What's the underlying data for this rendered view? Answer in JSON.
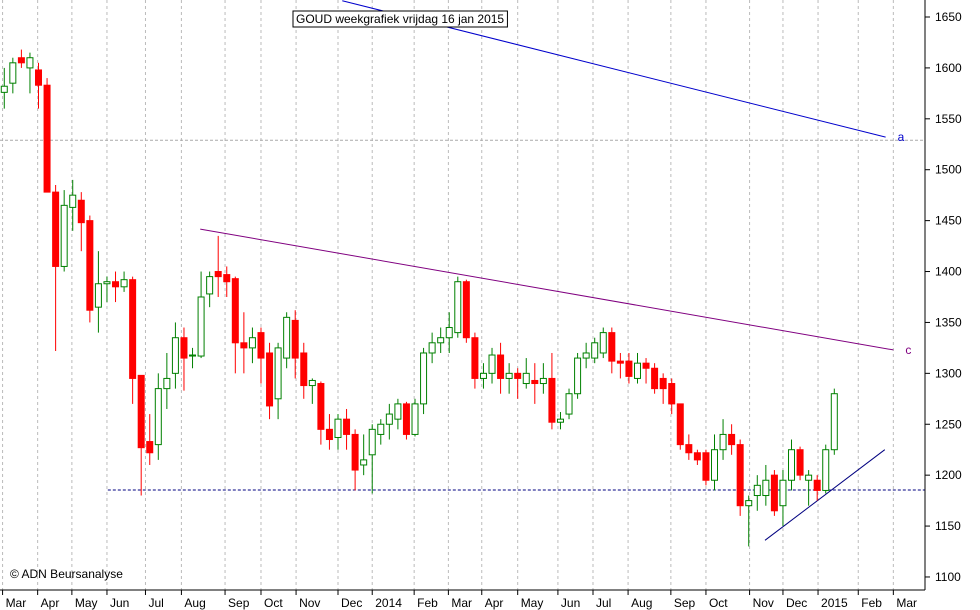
{
  "chart_data": {
    "type": "candlestick",
    "title": "GOUD weekgrafiek vrijdag 16 jan 2015",
    "credit": "© ADN Beursanalyse",
    "up_color": "#008000",
    "down_color": "#ff0000",
    "x": [
      0,
      1,
      2,
      3,
      4,
      5,
      6,
      7,
      8,
      9,
      10,
      11,
      12,
      13,
      14,
      15,
      16,
      17,
      18,
      19,
      20,
      21,
      22,
      23,
      24,
      25,
      26,
      27,
      28,
      29,
      30,
      31,
      32,
      33,
      34,
      35,
      36,
      37,
      38,
      39,
      40,
      41,
      42,
      43,
      44,
      45,
      46,
      47,
      48,
      49,
      50,
      51,
      52,
      53,
      54,
      55,
      56,
      57,
      58,
      59,
      60,
      61,
      62,
      63,
      64,
      65,
      66,
      67,
      68,
      69,
      70,
      71,
      72,
      73,
      74,
      75,
      76,
      77,
      78,
      79,
      80,
      81,
      82,
      83,
      84,
      85,
      86,
      87,
      88,
      89,
      90,
      91,
      92,
      93,
      94,
      95,
      96,
      97
    ],
    "open": [
      1576,
      1585,
      1610,
      1600,
      1598,
      1583,
      1478,
      1405,
      1463,
      1470,
      1450,
      1365,
      1388,
      1390,
      1385,
      1392,
      1298,
      1233,
      1230,
      1285,
      1300,
      1335,
      1317,
      1317,
      1378,
      1400,
      1397,
      1393,
      1330,
      1325,
      1340,
      1320,
      1275,
      1315,
      1352,
      1320,
      1288,
      1290,
      1245,
      1237,
      1255,
      1240,
      1210,
      1220,
      1240,
      1250,
      1255,
      1270,
      1240,
      1270,
      1320,
      1330,
      1335,
      1340,
      1390,
      1335,
      1295,
      1300,
      1318,
      1295,
      1300,
      1290,
      1293,
      1290,
      1295,
      1252,
      1260,
      1280,
      1315,
      1315,
      1320,
      1340,
      1312,
      1312,
      1295,
      1310,
      1305,
      1295,
      1290,
      1270,
      1230,
      1222,
      1222,
      1195,
      1225,
      1240,
      1230,
      1170,
      1180,
      1180,
      1200,
      1170,
      1195,
      1225,
      1195,
      1195,
      1185,
      1225
    ],
    "high": [
      1600,
      1610,
      1618,
      1615,
      1605,
      1590,
      1485,
      1480,
      1490,
      1478,
      1455,
      1420,
      1395,
      1400,
      1400,
      1395,
      1298,
      1260,
      1300,
      1320,
      1350,
      1345,
      1325,
      1400,
      1400,
      1435,
      1405,
      1395,
      1360,
      1345,
      1345,
      1330,
      1330,
      1360,
      1362,
      1330,
      1295,
      1292,
      1260,
      1260,
      1265,
      1245,
      1240,
      1250,
      1255,
      1270,
      1275,
      1272,
      1275,
      1325,
      1340,
      1345,
      1360,
      1395,
      1392,
      1340,
      1310,
      1325,
      1330,
      1310,
      1305,
      1315,
      1310,
      1310,
      1320,
      1262,
      1285,
      1320,
      1330,
      1335,
      1345,
      1345,
      1320,
      1320,
      1320,
      1315,
      1310,
      1300,
      1295,
      1270,
      1240,
      1225,
      1225,
      1240,
      1255,
      1250,
      1235,
      1180,
      1200,
      1210,
      1205,
      1205,
      1235,
      1228,
      1205,
      1200,
      1230,
      1285
    ],
    "low": [
      1560,
      1575,
      1600,
      1575,
      1560,
      1478,
      1322,
      1400,
      1440,
      1420,
      1350,
      1340,
      1370,
      1370,
      1380,
      1270,
      1180,
      1210,
      1215,
      1265,
      1285,
      1283,
      1305,
      1315,
      1365,
      1375,
      1375,
      1300,
      1300,
      1310,
      1290,
      1255,
      1255,
      1305,
      1295,
      1275,
      1270,
      1230,
      1225,
      1225,
      1225,
      1185,
      1200,
      1182,
      1230,
      1235,
      1245,
      1235,
      1238,
      1260,
      1310,
      1320,
      1320,
      1335,
      1330,
      1285,
      1285,
      1290,
      1280,
      1280,
      1275,
      1285,
      1270,
      1280,
      1245,
      1245,
      1255,
      1275,
      1305,
      1310,
      1315,
      1300,
      1295,
      1290,
      1290,
      1290,
      1280,
      1270,
      1260,
      1225,
      1215,
      1210,
      1190,
      1185,
      1215,
      1220,
      1160,
      1130,
      1165,
      1170,
      1160,
      1150,
      1185,
      1195,
      1170,
      1175,
      1182,
      1220
    ],
    "close": [
      1582,
      1605,
      1605,
      1610,
      1583,
      1478,
      1405,
      1465,
      1475,
      1448,
      1362,
      1388,
      1390,
      1385,
      1392,
      1295,
      1227,
      1222,
      1285,
      1295,
      1335,
      1315,
      1318,
      1375,
      1395,
      1395,
      1390,
      1330,
      1325,
      1335,
      1315,
      1268,
      1325,
      1355,
      1315,
      1288,
      1293,
      1245,
      1235,
      1255,
      1240,
      1205,
      1215,
      1245,
      1250,
      1260,
      1270,
      1240,
      1270,
      1320,
      1330,
      1335,
      1345,
      1390,
      1335,
      1295,
      1300,
      1318,
      1295,
      1300,
      1295,
      1300,
      1290,
      1295,
      1252,
      1255,
      1280,
      1315,
      1320,
      1330,
      1340,
      1312,
      1310,
      1297,
      1310,
      1305,
      1285,
      1285,
      1270,
      1230,
      1222,
      1215,
      1195,
      1225,
      1240,
      1230,
      1170,
      1175,
      1190,
      1195,
      1165,
      1195,
      1225,
      1200,
      1200,
      1185,
      1225,
      1280
    ],
    "xlim": [
      -0.5,
      107.6
    ],
    "ylim": [
      1087.2,
      1666.7
    ],
    "yticks": [
      1100,
      1150,
      1200,
      1250,
      1300,
      1350,
      1400,
      1450,
      1500,
      1550,
      1600,
      1650
    ],
    "xticks": [
      {
        "value": -0.2,
        "label": "Mar"
      },
      {
        "value": 3.9,
        "label": "Apr"
      },
      {
        "value": 7.9,
        "label": "May"
      },
      {
        "value": 12.0,
        "label": "Jun"
      },
      {
        "value": 16.5,
        "label": "Jul"
      },
      {
        "value": 20.7,
        "label": "Aug"
      },
      {
        "value": 25.8,
        "label": "Sep"
      },
      {
        "value": 30.0,
        "label": "Oct"
      },
      {
        "value": 34.1,
        "label": "Nov"
      },
      {
        "value": 39.0,
        "label": "Dec"
      },
      {
        "value": 43.0,
        "label": "2014"
      },
      {
        "value": 47.9,
        "label": "Feb"
      },
      {
        "value": 51.9,
        "label": "Mar"
      },
      {
        "value": 55.8,
        "label": "Apr"
      },
      {
        "value": 60.0,
        "label": "May"
      },
      {
        "value": 64.7,
        "label": "Jun"
      },
      {
        "value": 68.8,
        "label": "Jul"
      },
      {
        "value": 72.9,
        "label": "Aug"
      },
      {
        "value": 77.9,
        "label": "Sep"
      },
      {
        "value": 82.0,
        "label": "Oct"
      },
      {
        "value": 87.1,
        "label": "Nov"
      },
      {
        "value": 91.0,
        "label": "Dec"
      },
      {
        "value": 95.1,
        "label": "2015"
      },
      {
        "value": 99.8,
        "label": "Feb"
      },
      {
        "value": 103.9,
        "label": "Mar"
      }
    ],
    "trendlines": [
      {
        "label": "a",
        "color": "#0000cc",
        "x": [
          39.5,
          103.0
        ],
        "y": [
          1666,
          1532
        ]
      },
      {
        "label": "c",
        "color": "#800080",
        "x": [
          22.9,
          103.9
        ],
        "y": [
          1441.7,
          1323
        ]
      },
      {
        "color": "#000080",
        "x": [
          88.9,
          102.9
        ],
        "y": [
          1136,
          1225
        ]
      }
    ],
    "hlines": [
      {
        "color": "#000080",
        "y": 1185.4,
        "x": [
          12.1,
          107.6
        ]
      },
      {
        "color": "#aaaaaa",
        "y": 1529,
        "x": [
          -0.5,
          107.6
        ]
      }
    ]
  }
}
